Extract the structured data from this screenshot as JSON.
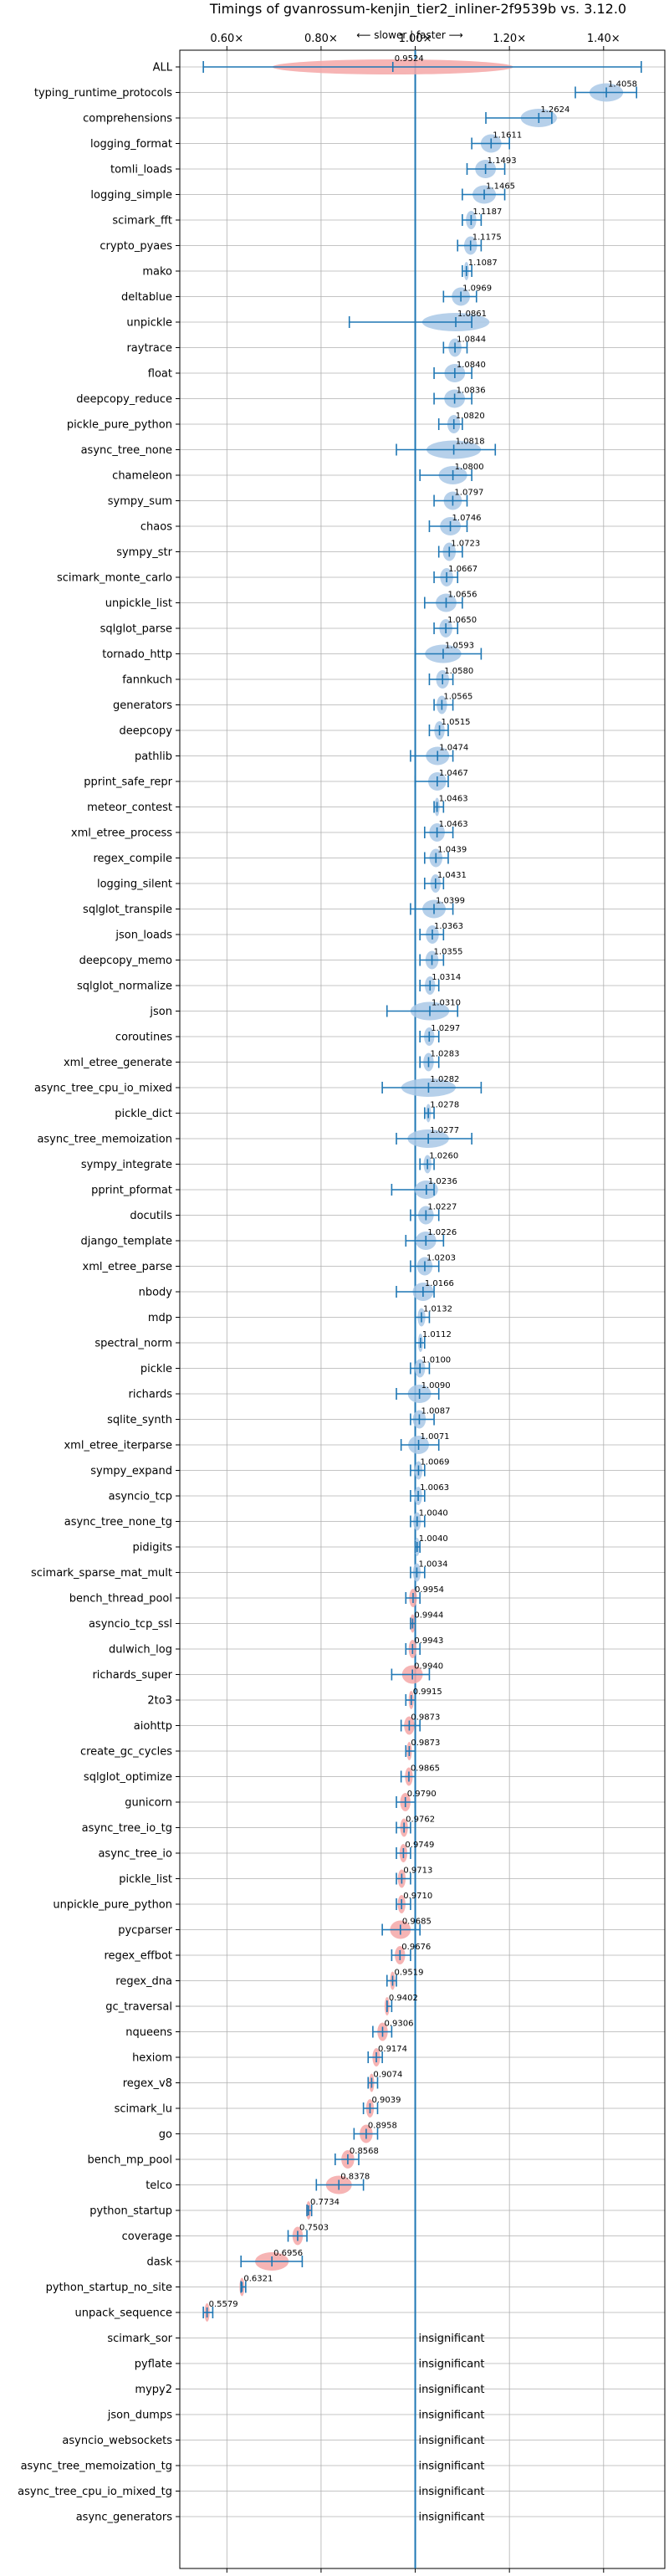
{
  "chart_data": {
    "type": "violin",
    "title": "Timings of gvanrossum-kenjin_tier2_inliner-2f9539b vs. 3.12.0",
    "subtitle": "⟵ slower | faster ⟶",
    "xlim": [
      0.5,
      1.53
    ],
    "x_ticks": [
      0.6,
      0.8,
      1.0,
      1.2,
      1.4
    ],
    "x_tick_labels": [
      "0.60×",
      "0.80×",
      "1.00×",
      "1.20×",
      "1.40×"
    ],
    "reference_line": 1.0,
    "grid": true,
    "colors": {
      "faster": "#a9c8e6",
      "slower": "#f4a7a7",
      "line": "#1f77b4",
      "grid": "#b0b0b0"
    },
    "insignificant_label": "insignificant",
    "benchmarks": [
      {
        "name": "ALL",
        "value": 0.9524,
        "value_label": "0.9524",
        "lo": 0.55,
        "hi": 1.48,
        "significant": true
      },
      {
        "name": "typing_runtime_protocols",
        "value": 1.4058,
        "value_label": "1.4058",
        "lo": 1.34,
        "hi": 1.47,
        "significant": true
      },
      {
        "name": "comprehensions",
        "value": 1.2624,
        "value_label": "1.2624",
        "lo": 1.15,
        "hi": 1.29,
        "significant": true
      },
      {
        "name": "logging_format",
        "value": 1.1611,
        "value_label": "1.1611",
        "lo": 1.12,
        "hi": 1.2,
        "significant": true
      },
      {
        "name": "tomli_loads",
        "value": 1.1493,
        "value_label": "1.1493",
        "lo": 1.11,
        "hi": 1.19,
        "significant": true
      },
      {
        "name": "logging_simple",
        "value": 1.1465,
        "value_label": "1.1465",
        "lo": 1.1,
        "hi": 1.19,
        "significant": true
      },
      {
        "name": "scimark_fft",
        "value": 1.1187,
        "value_label": "1.1187",
        "lo": 1.1,
        "hi": 1.14,
        "significant": true
      },
      {
        "name": "crypto_pyaes",
        "value": 1.1175,
        "value_label": "1.1175",
        "lo": 1.09,
        "hi": 1.14,
        "significant": true
      },
      {
        "name": "mako",
        "value": 1.1087,
        "value_label": "1.1087",
        "lo": 1.1,
        "hi": 1.12,
        "significant": true
      },
      {
        "name": "deltablue",
        "value": 1.0969,
        "value_label": "1.0969",
        "lo": 1.06,
        "hi": 1.13,
        "significant": true
      },
      {
        "name": "unpickle",
        "value": 1.0861,
        "value_label": "1.0861",
        "lo": 0.86,
        "hi": 1.12,
        "significant": true
      },
      {
        "name": "raytrace",
        "value": 1.0844,
        "value_label": "1.0844",
        "lo": 1.06,
        "hi": 1.11,
        "significant": true
      },
      {
        "name": "float",
        "value": 1.084,
        "value_label": "1.0840",
        "lo": 1.04,
        "hi": 1.12,
        "significant": true
      },
      {
        "name": "deepcopy_reduce",
        "value": 1.0836,
        "value_label": "1.0836",
        "lo": 1.04,
        "hi": 1.12,
        "significant": true
      },
      {
        "name": "pickle_pure_python",
        "value": 1.082,
        "value_label": "1.0820",
        "lo": 1.05,
        "hi": 1.1,
        "significant": true
      },
      {
        "name": "async_tree_none",
        "value": 1.0818,
        "value_label": "1.0818",
        "lo": 0.96,
        "hi": 1.17,
        "significant": true
      },
      {
        "name": "chameleon",
        "value": 1.08,
        "value_label": "1.0800",
        "lo": 1.01,
        "hi": 1.12,
        "significant": true
      },
      {
        "name": "sympy_sum",
        "value": 1.0797,
        "value_label": "1.0797",
        "lo": 1.04,
        "hi": 1.11,
        "significant": true
      },
      {
        "name": "chaos",
        "value": 1.0746,
        "value_label": "1.0746",
        "lo": 1.03,
        "hi": 1.11,
        "significant": true
      },
      {
        "name": "sympy_str",
        "value": 1.0723,
        "value_label": "1.0723",
        "lo": 1.05,
        "hi": 1.1,
        "significant": true
      },
      {
        "name": "scimark_monte_carlo",
        "value": 1.0667,
        "value_label": "1.0667",
        "lo": 1.04,
        "hi": 1.09,
        "significant": true
      },
      {
        "name": "unpickle_list",
        "value": 1.0656,
        "value_label": "1.0656",
        "lo": 1.02,
        "hi": 1.1,
        "significant": true
      },
      {
        "name": "sqlglot_parse",
        "value": 1.065,
        "value_label": "1.0650",
        "lo": 1.04,
        "hi": 1.09,
        "significant": true
      },
      {
        "name": "tornado_http",
        "value": 1.0593,
        "value_label": "1.0593",
        "lo": 1.0,
        "hi": 1.14,
        "significant": true
      },
      {
        "name": "fannkuch",
        "value": 1.058,
        "value_label": "1.0580",
        "lo": 1.03,
        "hi": 1.08,
        "significant": true
      },
      {
        "name": "generators",
        "value": 1.0565,
        "value_label": "1.0565",
        "lo": 1.04,
        "hi": 1.08,
        "significant": true
      },
      {
        "name": "deepcopy",
        "value": 1.0515,
        "value_label": "1.0515",
        "lo": 1.03,
        "hi": 1.07,
        "significant": true
      },
      {
        "name": "pathlib",
        "value": 1.0474,
        "value_label": "1.0474",
        "lo": 0.99,
        "hi": 1.08,
        "significant": true
      },
      {
        "name": "pprint_safe_repr",
        "value": 1.0467,
        "value_label": "1.0467",
        "lo": 1.0,
        "hi": 1.07,
        "significant": true
      },
      {
        "name": "meteor_contest",
        "value": 1.0463,
        "value_label": "1.0463",
        "lo": 1.04,
        "hi": 1.06,
        "significant": true
      },
      {
        "name": "xml_etree_process",
        "value": 1.0463,
        "value_label": "1.0463",
        "lo": 1.02,
        "hi": 1.08,
        "significant": true
      },
      {
        "name": "regex_compile",
        "value": 1.0439,
        "value_label": "1.0439",
        "lo": 1.02,
        "hi": 1.07,
        "significant": true
      },
      {
        "name": "logging_silent",
        "value": 1.0431,
        "value_label": "1.0431",
        "lo": 1.02,
        "hi": 1.06,
        "significant": true
      },
      {
        "name": "sqlglot_transpile",
        "value": 1.0399,
        "value_label": "1.0399",
        "lo": 0.99,
        "hi": 1.08,
        "significant": true
      },
      {
        "name": "json_loads",
        "value": 1.0363,
        "value_label": "1.0363",
        "lo": 1.01,
        "hi": 1.06,
        "significant": true
      },
      {
        "name": "deepcopy_memo",
        "value": 1.0355,
        "value_label": "1.0355",
        "lo": 1.01,
        "hi": 1.06,
        "significant": true
      },
      {
        "name": "sqlglot_normalize",
        "value": 1.0314,
        "value_label": "1.0314",
        "lo": 1.01,
        "hi": 1.05,
        "significant": true
      },
      {
        "name": "json",
        "value": 1.031,
        "value_label": "1.0310",
        "lo": 0.94,
        "hi": 1.09,
        "significant": true
      },
      {
        "name": "coroutines",
        "value": 1.0297,
        "value_label": "1.0297",
        "lo": 1.01,
        "hi": 1.05,
        "significant": true
      },
      {
        "name": "xml_etree_generate",
        "value": 1.0283,
        "value_label": "1.0283",
        "lo": 1.01,
        "hi": 1.05,
        "significant": true
      },
      {
        "name": "async_tree_cpu_io_mixed",
        "value": 1.0282,
        "value_label": "1.0282",
        "lo": 0.93,
        "hi": 1.14,
        "significant": true
      },
      {
        "name": "pickle_dict",
        "value": 1.0278,
        "value_label": "1.0278",
        "lo": 1.02,
        "hi": 1.04,
        "significant": true
      },
      {
        "name": "async_tree_memoization",
        "value": 1.0277,
        "value_label": "1.0277",
        "lo": 0.96,
        "hi": 1.12,
        "significant": true
      },
      {
        "name": "sympy_integrate",
        "value": 1.026,
        "value_label": "1.0260",
        "lo": 1.01,
        "hi": 1.04,
        "significant": true
      },
      {
        "name": "pprint_pformat",
        "value": 1.0236,
        "value_label": "1.0236",
        "lo": 0.95,
        "hi": 1.04,
        "significant": true
      },
      {
        "name": "docutils",
        "value": 1.0227,
        "value_label": "1.0227",
        "lo": 0.99,
        "hi": 1.05,
        "significant": true
      },
      {
        "name": "django_template",
        "value": 1.0226,
        "value_label": "1.0226",
        "lo": 0.98,
        "hi": 1.06,
        "significant": true
      },
      {
        "name": "xml_etree_parse",
        "value": 1.0203,
        "value_label": "1.0203",
        "lo": 0.99,
        "hi": 1.05,
        "significant": true
      },
      {
        "name": "nbody",
        "value": 1.0166,
        "value_label": "1.0166",
        "lo": 0.96,
        "hi": 1.04,
        "significant": true
      },
      {
        "name": "mdp",
        "value": 1.0132,
        "value_label": "1.0132",
        "lo": 1.0,
        "hi": 1.03,
        "significant": true
      },
      {
        "name": "spectral_norm",
        "value": 1.0112,
        "value_label": "1.0112",
        "lo": 1.0,
        "hi": 1.02,
        "significant": true
      },
      {
        "name": "pickle",
        "value": 1.01,
        "value_label": "1.0100",
        "lo": 0.99,
        "hi": 1.03,
        "significant": true
      },
      {
        "name": "richards",
        "value": 1.009,
        "value_label": "1.0090",
        "lo": 0.96,
        "hi": 1.05,
        "significant": true
      },
      {
        "name": "sqlite_synth",
        "value": 1.0087,
        "value_label": "1.0087",
        "lo": 0.99,
        "hi": 1.04,
        "significant": true
      },
      {
        "name": "xml_etree_iterparse",
        "value": 1.0071,
        "value_label": "1.0071",
        "lo": 0.97,
        "hi": 1.05,
        "significant": true
      },
      {
        "name": "sympy_expand",
        "value": 1.0069,
        "value_label": "1.0069",
        "lo": 0.99,
        "hi": 1.02,
        "significant": true
      },
      {
        "name": "asyncio_tcp",
        "value": 1.0063,
        "value_label": "1.0063",
        "lo": 0.99,
        "hi": 1.02,
        "significant": true
      },
      {
        "name": "async_tree_none_tg",
        "value": 1.004,
        "value_label": "1.0040",
        "lo": 0.99,
        "hi": 1.02,
        "significant": true
      },
      {
        "name": "pidigits",
        "value": 1.004,
        "value_label": "1.0040",
        "lo": 1.0,
        "hi": 1.01,
        "significant": true
      },
      {
        "name": "scimark_sparse_mat_mult",
        "value": 1.0034,
        "value_label": "1.0034",
        "lo": 0.99,
        "hi": 1.02,
        "significant": true
      },
      {
        "name": "bench_thread_pool",
        "value": 0.9954,
        "value_label": "0.9954",
        "lo": 0.98,
        "hi": 1.01,
        "significant": true
      },
      {
        "name": "asyncio_tcp_ssl",
        "value": 0.9944,
        "value_label": "0.9944",
        "lo": 0.99,
        "hi": 1.0,
        "significant": true
      },
      {
        "name": "dulwich_log",
        "value": 0.9943,
        "value_label": "0.9943",
        "lo": 0.98,
        "hi": 1.01,
        "significant": true
      },
      {
        "name": "richards_super",
        "value": 0.994,
        "value_label": "0.9940",
        "lo": 0.95,
        "hi": 1.03,
        "significant": true
      },
      {
        "name": "2to3",
        "value": 0.9915,
        "value_label": "0.9915",
        "lo": 0.98,
        "hi": 1.0,
        "significant": true
      },
      {
        "name": "aiohttp",
        "value": 0.9873,
        "value_label": "0.9873",
        "lo": 0.97,
        "hi": 1.01,
        "significant": true
      },
      {
        "name": "create_gc_cycles",
        "value": 0.9873,
        "value_label": "0.9873",
        "lo": 0.98,
        "hi": 1.0,
        "significant": true
      },
      {
        "name": "sqlglot_optimize",
        "value": 0.9865,
        "value_label": "0.9865",
        "lo": 0.97,
        "hi": 1.0,
        "significant": true
      },
      {
        "name": "gunicorn",
        "value": 0.979,
        "value_label": "0.9790",
        "lo": 0.96,
        "hi": 1.0,
        "significant": true
      },
      {
        "name": "async_tree_io_tg",
        "value": 0.9762,
        "value_label": "0.9762",
        "lo": 0.96,
        "hi": 0.99,
        "significant": true
      },
      {
        "name": "async_tree_io",
        "value": 0.9749,
        "value_label": "0.9749",
        "lo": 0.96,
        "hi": 0.99,
        "significant": true
      },
      {
        "name": "pickle_list",
        "value": 0.9713,
        "value_label": "0.9713",
        "lo": 0.96,
        "hi": 0.99,
        "significant": true
      },
      {
        "name": "unpickle_pure_python",
        "value": 0.971,
        "value_label": "0.9710",
        "lo": 0.96,
        "hi": 0.99,
        "significant": true
      },
      {
        "name": "pycparser",
        "value": 0.9685,
        "value_label": "0.9685",
        "lo": 0.93,
        "hi": 1.01,
        "significant": true
      },
      {
        "name": "regex_effbot",
        "value": 0.9676,
        "value_label": "0.9676",
        "lo": 0.95,
        "hi": 0.99,
        "significant": true
      },
      {
        "name": "regex_dna",
        "value": 0.9519,
        "value_label": "0.9519",
        "lo": 0.94,
        "hi": 0.96,
        "significant": true
      },
      {
        "name": "gc_traversal",
        "value": 0.9402,
        "value_label": "0.9402",
        "lo": 0.94,
        "hi": 0.95,
        "significant": true
      },
      {
        "name": "nqueens",
        "value": 0.9306,
        "value_label": "0.9306",
        "lo": 0.91,
        "hi": 0.95,
        "significant": true
      },
      {
        "name": "hexiom",
        "value": 0.9174,
        "value_label": "0.9174",
        "lo": 0.9,
        "hi": 0.93,
        "significant": true
      },
      {
        "name": "regex_v8",
        "value": 0.9074,
        "value_label": "0.9074",
        "lo": 0.9,
        "hi": 0.92,
        "significant": true
      },
      {
        "name": "scimark_lu",
        "value": 0.9039,
        "value_label": "0.9039",
        "lo": 0.89,
        "hi": 0.92,
        "significant": true
      },
      {
        "name": "go",
        "value": 0.8958,
        "value_label": "0.8958",
        "lo": 0.87,
        "hi": 0.92,
        "significant": true
      },
      {
        "name": "bench_mp_pool",
        "value": 0.8568,
        "value_label": "0.8568",
        "lo": 0.83,
        "hi": 0.88,
        "significant": true
      },
      {
        "name": "telco",
        "value": 0.8378,
        "value_label": "0.8378",
        "lo": 0.79,
        "hi": 0.89,
        "significant": true
      },
      {
        "name": "python_startup",
        "value": 0.7734,
        "value_label": "0.7734",
        "lo": 0.77,
        "hi": 0.78,
        "significant": true
      },
      {
        "name": "coverage",
        "value": 0.7503,
        "value_label": "0.7503",
        "lo": 0.73,
        "hi": 0.77,
        "significant": true
      },
      {
        "name": "dask",
        "value": 0.6956,
        "value_label": "0.6956",
        "lo": 0.63,
        "hi": 0.76,
        "significant": true
      },
      {
        "name": "python_startup_no_site",
        "value": 0.6321,
        "value_label": "0.6321",
        "lo": 0.63,
        "hi": 0.64,
        "significant": true
      },
      {
        "name": "unpack_sequence",
        "value": 0.5579,
        "value_label": "0.5579",
        "lo": 0.55,
        "hi": 0.57,
        "significant": true
      },
      {
        "name": "scimark_sor",
        "significant": false
      },
      {
        "name": "pyflate",
        "significant": false
      },
      {
        "name": "mypy2",
        "significant": false
      },
      {
        "name": "json_dumps",
        "significant": false
      },
      {
        "name": "asyncio_websockets",
        "significant": false
      },
      {
        "name": "async_tree_memoization_tg",
        "significant": false
      },
      {
        "name": "async_tree_cpu_io_mixed_tg",
        "significant": false
      },
      {
        "name": "async_generators",
        "significant": false
      }
    ]
  }
}
